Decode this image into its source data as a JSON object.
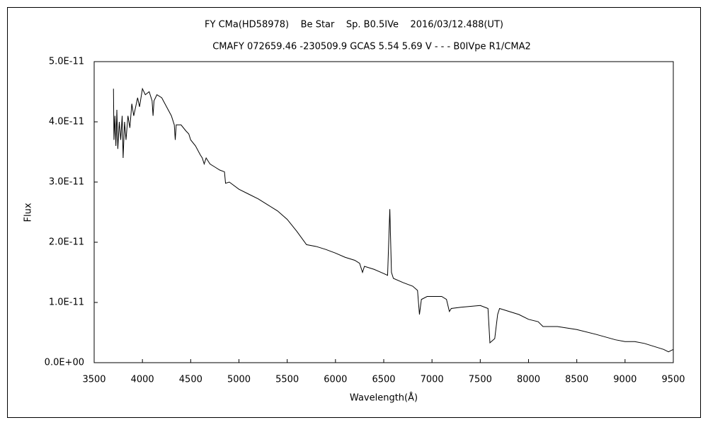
{
  "chart_data": {
    "type": "line",
    "title": "FY CMa(HD58978)    Be Star    Sp. B0.5IVe    2016/03/12.488(UT)",
    "subtitle": "CMAFY 072659.46 -230509.9 GCAS 5.54 5.69 V - - - B0IVpe R1/CMA2",
    "x_label": "Wavelength(Å)",
    "y_label": "Flux",
    "xlim": [
      3500,
      9500
    ],
    "xticks": [
      3500,
      4000,
      4500,
      5000,
      5500,
      6000,
      6500,
      7000,
      7500,
      8000,
      8500,
      9000,
      9500
    ],
    "ylim": [
      0,
      5e-11
    ],
    "yticks": [
      {
        "value": 0,
        "label": "0.0E+00"
      },
      {
        "value": 1e-11,
        "label": "1.0E-11"
      },
      {
        "value": 2e-11,
        "label": "2.0E-11"
      },
      {
        "value": 3e-11,
        "label": "3.0E-11"
      },
      {
        "value": 4e-11,
        "label": "4.0E-11"
      },
      {
        "value": 5e-11,
        "label": "5.0E-11"
      }
    ],
    "series": [
      {
        "color": "#000000",
        "x": [
          3700,
          3705,
          3715,
          3725,
          3735,
          3745,
          3760,
          3775,
          3790,
          3800,
          3815,
          3830,
          3850,
          3870,
          3890,
          3910,
          3950,
          3970,
          4000,
          4030,
          4070,
          4100,
          4110,
          4120,
          4150,
          4200,
          4250,
          4300,
          4330,
          4340,
          4350,
          4400,
          4450,
          4480,
          4500,
          4550,
          4600,
          4620,
          4640,
          4660,
          4700,
          4750,
          4800,
          4850,
          4861,
          4900,
          5000,
          5100,
          5200,
          5300,
          5400,
          5500,
          5600,
          5700,
          5800,
          5900,
          6000,
          6100,
          6200,
          6250,
          6280,
          6300,
          6400,
          6500,
          6540,
          6563,
          6580,
          6600,
          6700,
          6800,
          6850,
          6870,
          6890,
          6950,
          7100,
          7150,
          7180,
          7200,
          7300,
          7500,
          7580,
          7600,
          7650,
          7680,
          7700,
          7800,
          7900,
          8000,
          8100,
          8150,
          8300,
          8500,
          8700,
          8900,
          9000,
          9100,
          9200,
          9300,
          9400,
          9450,
          9500
        ],
        "values": [
          4.55e-11,
          3.7e-11,
          4.1e-11,
          3.6e-11,
          4.2e-11,
          3.55e-11,
          4e-11,
          3.7e-11,
          4.1e-11,
          3.4e-11,
          4e-11,
          3.7e-11,
          4.1e-11,
          3.9e-11,
          4.3e-11,
          4.1e-11,
          4.4e-11,
          4.25e-11,
          4.55e-11,
          4.45e-11,
          4.5e-11,
          4.35e-11,
          4.1e-11,
          4.35e-11,
          4.45e-11,
          4.4e-11,
          4.25e-11,
          4.1e-11,
          3.95e-11,
          3.7e-11,
          3.95e-11,
          3.95e-11,
          3.85e-11,
          3.8e-11,
          3.7e-11,
          3.6e-11,
          3.45e-11,
          3.4e-11,
          3.3e-11,
          3.4e-11,
          3.3e-11,
          3.25e-11,
          3.2e-11,
          3.17e-11,
          2.98e-11,
          3e-11,
          2.88e-11,
          2.8e-11,
          2.72e-11,
          2.62e-11,
          2.52e-11,
          2.38e-11,
          2.18e-11,
          1.96e-11,
          1.93e-11,
          1.88e-11,
          1.82e-11,
          1.75e-11,
          1.7e-11,
          1.65e-11,
          1.5e-11,
          1.6e-11,
          1.55e-11,
          1.48e-11,
          1.45e-11,
          2.55e-11,
          1.5e-11,
          1.4e-11,
          1.33e-11,
          1.27e-11,
          1.2e-11,
          8e-12,
          1.05e-11,
          1.1e-11,
          1.1e-11,
          1.05e-11,
          8.5e-12,
          9e-12,
          9.2e-12,
          9.5e-12,
          9e-12,
          3.3e-12,
          4e-12,
          8e-12,
          9e-12,
          8.5e-12,
          8e-12,
          7.2e-12,
          6.8e-12,
          6e-12,
          6e-12,
          5.5e-12,
          4.7e-12,
          3.8e-12,
          3.5e-12,
          3.5e-12,
          3.2e-12,
          2.7e-12,
          2.2e-12,
          1.8e-12,
          2.2e-12
        ]
      }
    ]
  }
}
